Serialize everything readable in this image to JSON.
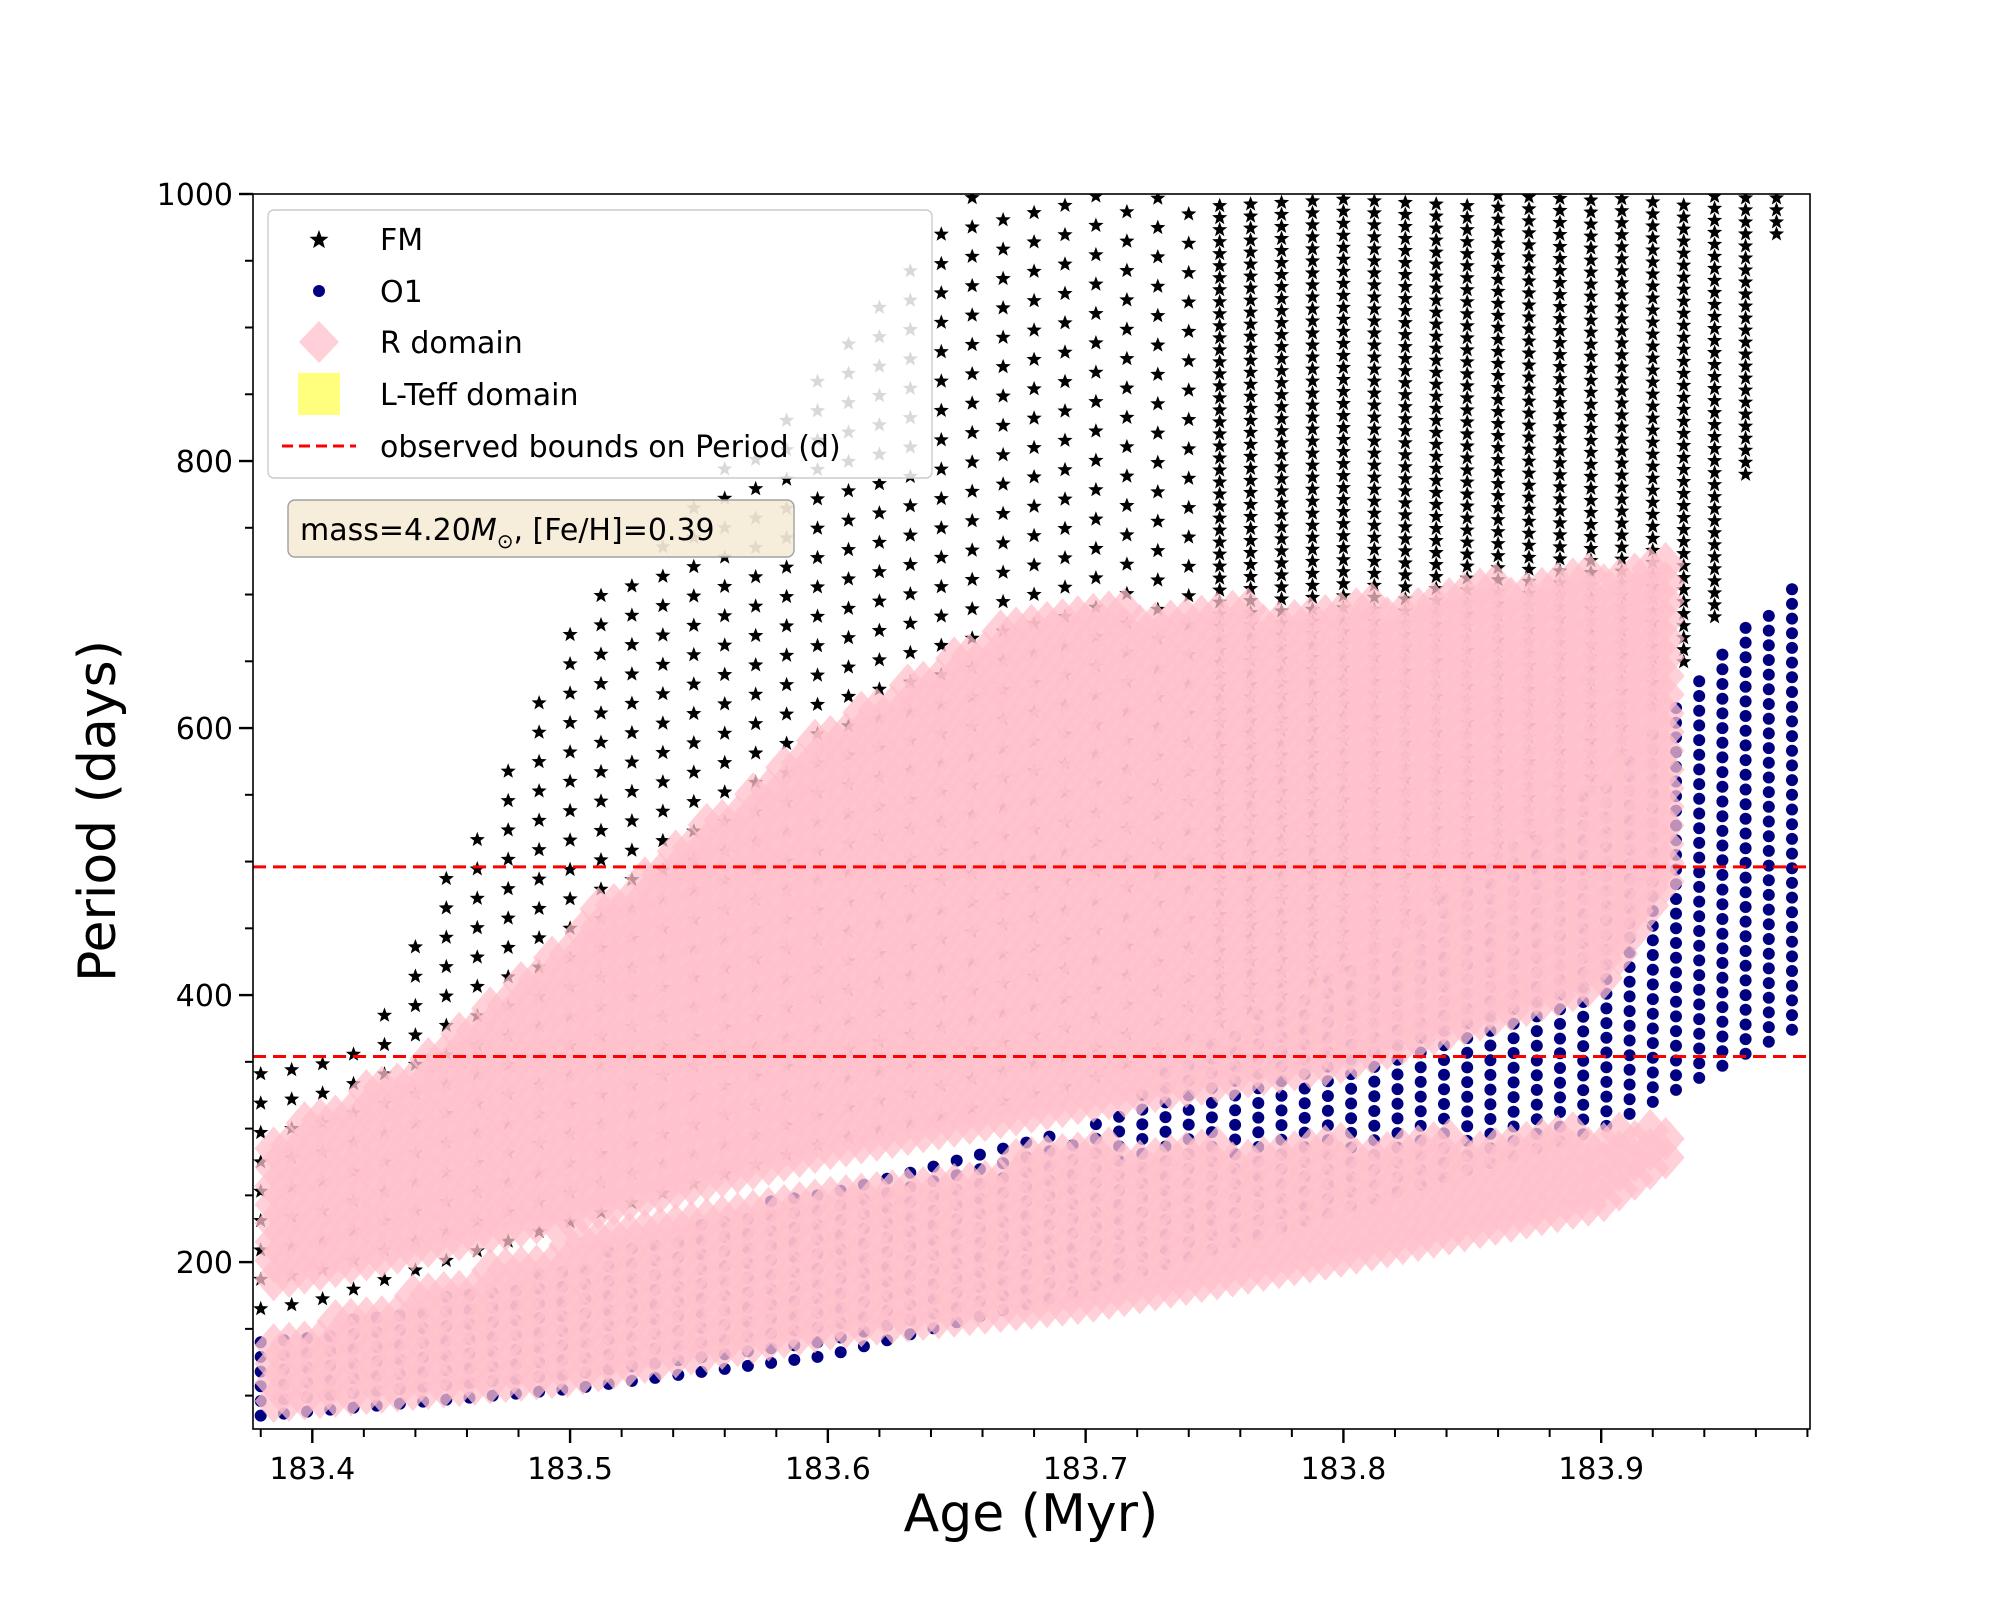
{
  "chart_data": {
    "type": "scatter",
    "title": "",
    "xlabel": "Age (Myr)",
    "ylabel": "Period (days)",
    "xlim": [
      183.377,
      183.981
    ],
    "ylim": [
      75,
      1000
    ],
    "x_ticks": [
      183.4,
      183.5,
      183.6,
      183.7,
      183.8,
      183.9
    ],
    "x_tick_labels": [
      "183.4",
      "183.5",
      "183.6",
      "183.7",
      "183.8",
      "183.9"
    ],
    "y_ticks": [
      200,
      400,
      600,
      800,
      1000
    ],
    "y_tick_labels": [
      "200",
      "400",
      "600",
      "800",
      "1000"
    ],
    "grid": false,
    "legend_position": "top-left",
    "annotation": {
      "text_before": "mass=4.20",
      "italic": "M",
      "subscript": "⊙",
      "text_after": ", [Fe/H]=0.39",
      "position": "upper-left"
    },
    "series": [
      {
        "name": "FM",
        "marker": "star",
        "color": "#000000",
        "age_range": [
          183.38,
          183.98
        ],
        "period_lower_bound": [
          [
            183.38,
            165
          ],
          [
            183.4,
            170
          ],
          [
            183.5,
            230
          ],
          [
            183.6,
            290
          ],
          [
            183.7,
            335
          ],
          [
            183.8,
            420
          ],
          [
            183.9,
            560
          ],
          [
            183.95,
            700
          ],
          [
            183.97,
            1000
          ]
        ],
        "period_upper_bound": [
          [
            183.42,
            360
          ],
          [
            183.5,
            680
          ],
          [
            183.55,
            780
          ],
          [
            183.6,
            870
          ],
          [
            183.65,
            1000
          ],
          [
            183.97,
            1000
          ]
        ]
      },
      {
        "name": "O1",
        "marker": "circle",
        "color": "#000080",
        "age_range": [
          183.38,
          183.98
        ],
        "period_lower_bound": [
          [
            183.38,
            85
          ],
          [
            183.5,
            105
          ],
          [
            183.6,
            130
          ],
          [
            183.7,
            180
          ],
          [
            183.8,
            240
          ],
          [
            183.9,
            300
          ],
          [
            183.98,
            380
          ]
        ],
        "period_upper_bound": [
          [
            183.38,
            140
          ],
          [
            183.5,
            200
          ],
          [
            183.6,
            260
          ],
          [
            183.7,
            300
          ],
          [
            183.75,
            370
          ],
          [
            183.8,
            420
          ],
          [
            183.9,
            560
          ],
          [
            183.98,
            725
          ]
        ]
      },
      {
        "name": "R domain",
        "marker": "diamond",
        "color": "#ffc0cb",
        "bands": [
          {
            "mode": "FM",
            "lower": [
              [
                183.38,
                185
              ],
              [
                183.5,
                235
              ],
              [
                183.6,
                285
              ],
              [
                183.7,
                320
              ],
              [
                183.8,
                350
              ],
              [
                183.9,
                410
              ],
              [
                183.93,
                500
              ]
            ],
            "upper": [
              [
                183.38,
                290
              ],
              [
                183.45,
                360
              ],
              [
                183.52,
                480
              ],
              [
                183.6,
                600
              ],
              [
                183.68,
                690
              ],
              [
                183.8,
                690
              ],
              [
                183.9,
                720
              ],
              [
                183.93,
                740
              ]
            ]
          },
          {
            "mode": "O1",
            "lower": [
              [
                183.38,
                95
              ],
              [
                183.5,
                115
              ],
              [
                183.6,
                150
              ],
              [
                183.7,
                170
              ],
              [
                183.8,
                205
              ],
              [
                183.9,
                245
              ],
              [
                183.93,
                285
              ]
            ],
            "upper": [
              [
                183.38,
                140
              ],
              [
                183.5,
                215
              ],
              [
                183.6,
                255
              ],
              [
                183.7,
                285
              ],
              [
                183.8,
                290
              ],
              [
                183.93,
                300
              ]
            ]
          }
        ]
      },
      {
        "name": "L-Teff domain",
        "marker": "square",
        "color": "#ffff66"
      },
      {
        "name": "observed bounds on Period (d)",
        "marker": "dashed-line",
        "color": "#ff0000",
        "values": [
          354,
          496
        ]
      }
    ]
  }
}
